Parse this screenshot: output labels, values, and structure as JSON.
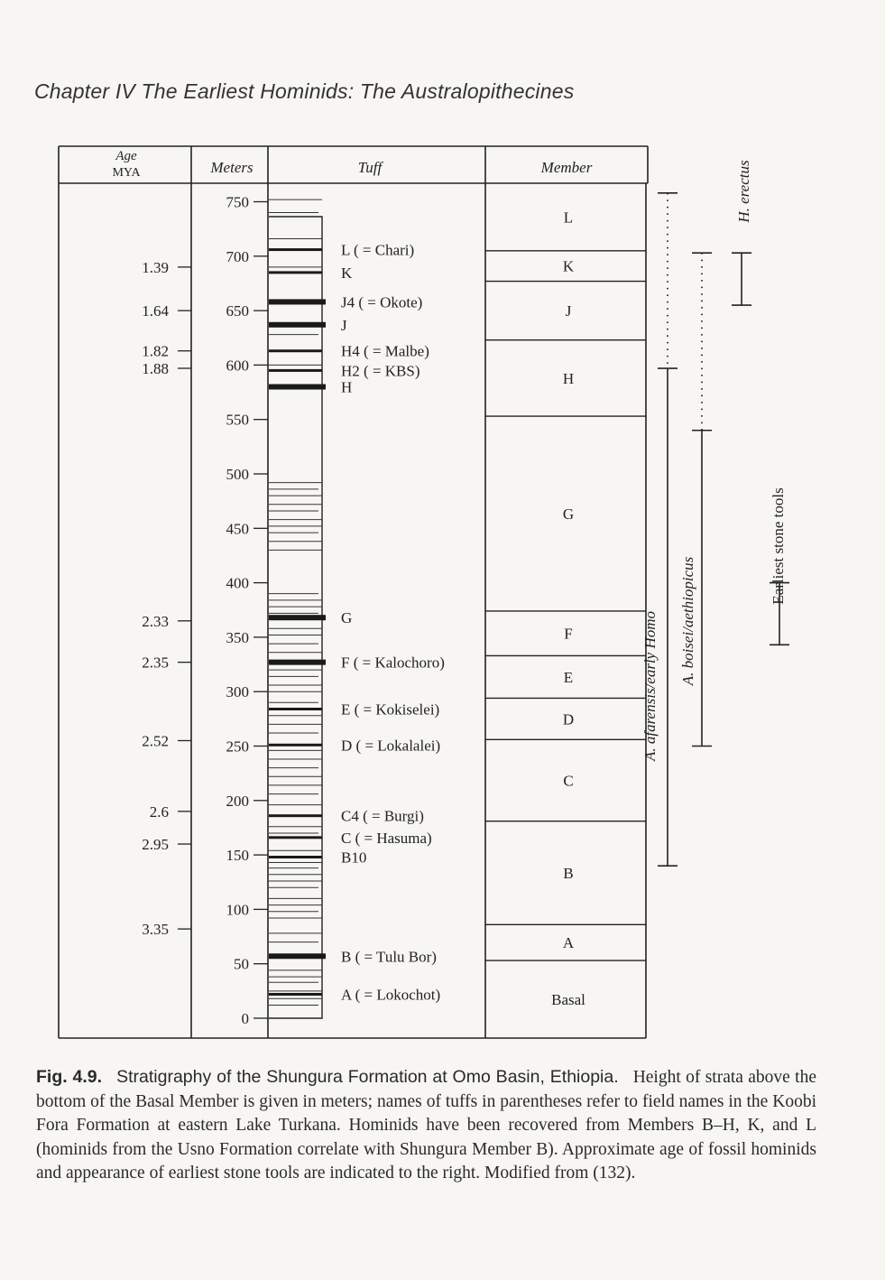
{
  "header": {
    "chapter_title": "Chapter IV   The Earliest Hominids: The Australopithecines"
  },
  "table_headers": {
    "age_line1": "Age",
    "age_line2": "MYA",
    "meters": "Meters",
    "tuff": "Tuff",
    "member": "Member"
  },
  "meter_ticks": [
    "0",
    "50",
    "100",
    "150",
    "200",
    "250",
    "300",
    "350",
    "400",
    "450",
    "500",
    "550",
    "600",
    "650",
    "700",
    "750"
  ],
  "age_markers": [
    {
      "age": "1.39",
      "meter": 690
    },
    {
      "age": "1.64",
      "meter": 650
    },
    {
      "age": "1.82",
      "meter": 613
    },
    {
      "age": "1.88",
      "meter": 597
    },
    {
      "age": "2.33",
      "meter": 365
    },
    {
      "age": "2.35",
      "meter": 327
    },
    {
      "age": "2.52",
      "meter": 255
    },
    {
      "age": "2.6",
      "meter": 190
    },
    {
      "age": "2.95",
      "meter": 160
    },
    {
      "age": "3.35",
      "meter": 82
    }
  ],
  "tuffs": [
    {
      "label": "L ( = Chari)",
      "meter": 706
    },
    {
      "label": "K",
      "meter": 685
    },
    {
      "label": "J4 ( = Okote)",
      "meter": 658
    },
    {
      "label": "J",
      "meter": 637
    },
    {
      "label": "H4 ( = Malbe)",
      "meter": 613
    },
    {
      "label": "H2 ( = KBS)",
      "meter": 595
    },
    {
      "label": "H",
      "meter": 580
    },
    {
      "label": "G",
      "meter": 368
    },
    {
      "label": "F ( = Kalochoro)",
      "meter": 327
    },
    {
      "label": "E ( = Kokiselei)",
      "meter": 284
    },
    {
      "label": "D ( = Lokalalei)",
      "meter": 251
    },
    {
      "label": "C4 ( = Burgi)",
      "meter": 186
    },
    {
      "label": "C ( = Hasuma)",
      "meter": 166
    },
    {
      "label": "B10",
      "meter": 148
    },
    {
      "label": "B ( = Tulu Bor)",
      "meter": 57
    },
    {
      "label": "A ( = Lokochot)",
      "meter": 22
    }
  ],
  "members": [
    {
      "label": "L",
      "top_meter": 775,
      "bottom_meter": 705
    },
    {
      "label": "K",
      "top_meter": 705,
      "bottom_meter": 677
    },
    {
      "label": "J",
      "top_meter": 677,
      "bottom_meter": 623
    },
    {
      "label": "H",
      "top_meter": 623,
      "bottom_meter": 553
    },
    {
      "label": "G",
      "top_meter": 553,
      "bottom_meter": 374
    },
    {
      "label": "F",
      "top_meter": 374,
      "bottom_meter": 333
    },
    {
      "label": "E",
      "top_meter": 333,
      "bottom_meter": 294
    },
    {
      "label": "D",
      "top_meter": 294,
      "bottom_meter": 256
    },
    {
      "label": "C",
      "top_meter": 256,
      "bottom_meter": 181
    },
    {
      "label": "B",
      "top_meter": 181,
      "bottom_meter": 86
    },
    {
      "label": "A",
      "top_meter": 86,
      "bottom_meter": 53
    },
    {
      "label": "Basal",
      "top_meter": 53,
      "bottom_meter": -30
    }
  ],
  "ranges": [
    {
      "label": "A. afarensis/early Homo",
      "top_meter": 597,
      "bottom_meter": 140,
      "dotted_top_meter": 758
    },
    {
      "label": "A. boisei/aethiopicus",
      "top_meter": 540,
      "bottom_meter": 250,
      "dotted_top_meter": 703
    },
    {
      "label": "H. erectus",
      "top_meter": 703,
      "bottom_meter": 655
    },
    {
      "label": "Earliest stone tools",
      "top_meter": 400,
      "bottom_meter": 343
    }
  ],
  "caption": {
    "label": "Fig. 4.9.",
    "title": "Stratigraphy of the Shungura Formation at Omo Basin, Ethiopia.",
    "text": "Height of strata above the bottom of the Basal Member is given in meters; names of tuffs in parentheses refer to field names in the Koobi Fora Formation at eastern Lake Turkana. Hominids have been recovered from Members B–H, K, and L (hominids from the Usno Formation correlate with Shungura Member B). Approximate age of fossil hominids and appearance of earliest stone tools are indicated to the right. Modified from (132)."
  }
}
